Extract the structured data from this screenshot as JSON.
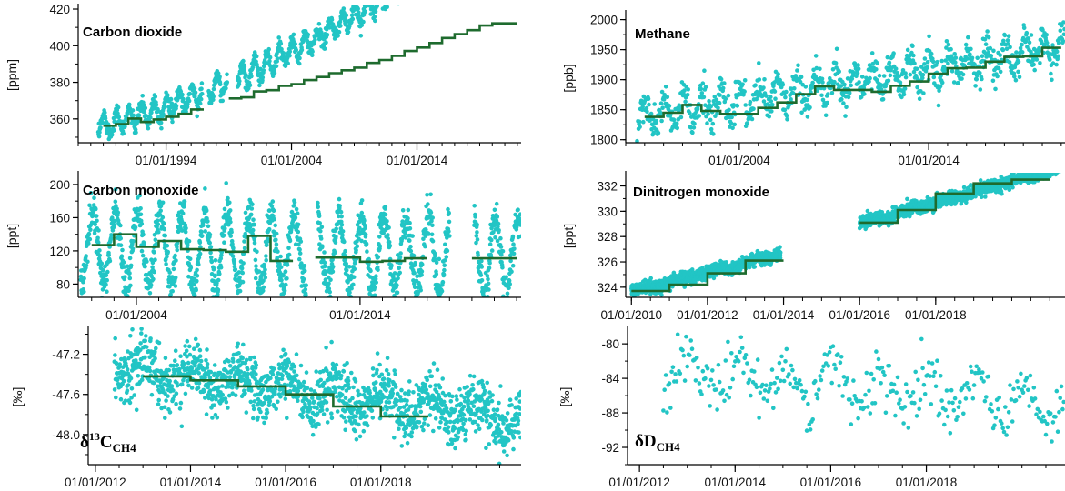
{
  "colors": {
    "points": "#22c5c5",
    "mean_line": "#1e6b2e",
    "axis": "#000000"
  },
  "chart_data": [
    {
      "id": "co2",
      "type": "scatter",
      "title": "Carbon dioxide",
      "ylabel": "[ppm]",
      "xlim": [
        1987.0,
        2022.3
      ],
      "ylim": [
        347,
        421
      ],
      "y_ticks": [
        360,
        380,
        400,
        420
      ],
      "x_ticks": [
        {
          "value": 1994.0,
          "label": "01/01/1994"
        },
        {
          "value": 2004.0,
          "label": "01/01/2004"
        },
        {
          "value": 2014.0,
          "label": "01/01/2014"
        }
      ],
      "points_model": {
        "kind": "seasonal",
        "start": 1988.6,
        "end": 2022.3,
        "spacing": 0.025,
        "base": 356.5,
        "base_year": 1989,
        "trend": 1.78,
        "curvature": 0.006,
        "amplitude": 5.6,
        "noise": 2.2,
        "gaps": [
          [
            1996.9,
            1997.4
          ],
          [
            1998.9,
            1999.7
          ]
        ]
      },
      "annual_means": [
        {
          "start": 1989,
          "end": 1990,
          "value": 356.3
        },
        {
          "start": 1990,
          "end": 1991,
          "value": 357.2
        },
        {
          "start": 1991,
          "end": 1992,
          "value": 360.2
        },
        {
          "start": 1992,
          "end": 1993,
          "value": 358.3
        },
        {
          "start": 1993,
          "end": 1994,
          "value": 359.7
        },
        {
          "start": 1994,
          "end": 1995,
          "value": 361.2
        },
        {
          "start": 1995,
          "end": 1996,
          "value": 362.8
        },
        {
          "start": 1996,
          "end": 1997,
          "value": 365.2
        },
        {
          "start": 1999,
          "end": 2000,
          "value": 371.2
        },
        {
          "start": 2000,
          "end": 2001,
          "value": 371.8
        },
        {
          "start": 2001,
          "end": 2002,
          "value": 375.0
        },
        {
          "start": 2002,
          "end": 2003,
          "value": 375.7
        },
        {
          "start": 2003,
          "end": 2004,
          "value": 378.1
        },
        {
          "start": 2004,
          "end": 2005,
          "value": 379.0
        },
        {
          "start": 2005,
          "end": 2006,
          "value": 381.2
        },
        {
          "start": 2006,
          "end": 2007,
          "value": 382.9
        },
        {
          "start": 2007,
          "end": 2008,
          "value": 385.0
        },
        {
          "start": 2008,
          "end": 2009,
          "value": 386.6
        },
        {
          "start": 2009,
          "end": 2010,
          "value": 388.0
        },
        {
          "start": 2010,
          "end": 2011,
          "value": 390.6
        },
        {
          "start": 2011,
          "end": 2012,
          "value": 392.2
        },
        {
          "start": 2012,
          "end": 2013,
          "value": 394.5
        },
        {
          "start": 2013,
          "end": 2014,
          "value": 397.1
        },
        {
          "start": 2014,
          "end": 2015,
          "value": 399.0
        },
        {
          "start": 2015,
          "end": 2016,
          "value": 401.5
        },
        {
          "start": 2016,
          "end": 2017,
          "value": 404.2
        },
        {
          "start": 2017,
          "end": 2018,
          "value": 406.3
        },
        {
          "start": 2018,
          "end": 2019,
          "value": 408.5
        },
        {
          "start": 2019,
          "end": 2020,
          "value": 411.0
        },
        {
          "start": 2020,
          "end": 2021,
          "value": 412.2
        },
        {
          "start": 2021,
          "end": 2022,
          "value": 412.2
        }
      ]
    },
    {
      "id": "ch4",
      "type": "scatter",
      "title": "Methane",
      "ylabel": "[ppb]",
      "xlim": [
        1998.0,
        2021.2
      ],
      "ylim": [
        1795,
        2010
      ],
      "y_ticks": [
        1800,
        1850,
        1900,
        1950,
        2000
      ],
      "x_ticks": [
        {
          "value": 2004.0,
          "label": "01/01/2004"
        },
        {
          "value": 2014.0,
          "label": "01/01/2014"
        }
      ],
      "points_model": {
        "kind": "seasonal",
        "start": 1998.6,
        "end": 2021.2,
        "spacing": 0.025,
        "base": 1838,
        "base_year": 1999,
        "trend": 5.3,
        "curvature": 0.0,
        "amplitude": 23,
        "noise": 14,
        "gaps": []
      },
      "annual_means": [
        {
          "start": 1999,
          "end": 2000,
          "value": 1838
        },
        {
          "start": 2000,
          "end": 2001,
          "value": 1845
        },
        {
          "start": 2001,
          "end": 2002,
          "value": 1858
        },
        {
          "start": 2002,
          "end": 2003,
          "value": 1848
        },
        {
          "start": 2003,
          "end": 2004,
          "value": 1843
        },
        {
          "start": 2004,
          "end": 2005,
          "value": 1843
        },
        {
          "start": 2005,
          "end": 2006,
          "value": 1853
        },
        {
          "start": 2006,
          "end": 2007,
          "value": 1862
        },
        {
          "start": 2007,
          "end": 2008,
          "value": 1876
        },
        {
          "start": 2008,
          "end": 2009,
          "value": 1889
        },
        {
          "start": 2009,
          "end": 2010,
          "value": 1883
        },
        {
          "start": 2010,
          "end": 2011,
          "value": 1883
        },
        {
          "start": 2011,
          "end": 2012,
          "value": 1880
        },
        {
          "start": 2012,
          "end": 2013,
          "value": 1890
        },
        {
          "start": 2013,
          "end": 2014,
          "value": 1897
        },
        {
          "start": 2014,
          "end": 2015,
          "value": 1910
        },
        {
          "start": 2015,
          "end": 2016,
          "value": 1919
        },
        {
          "start": 2016,
          "end": 2017,
          "value": 1920
        },
        {
          "start": 2017,
          "end": 2018,
          "value": 1930
        },
        {
          "start": 2018,
          "end": 2019,
          "value": 1938
        },
        {
          "start": 2019,
          "end": 2020,
          "value": 1939
        },
        {
          "start": 2020,
          "end": 2021,
          "value": 1953
        }
      ]
    },
    {
      "id": "co",
      "type": "scatter",
      "title": "Carbon monoxide",
      "ylabel": "[ppt]",
      "xlim": [
        2001.4,
        2021.2
      ],
      "ylim": [
        64,
        212
      ],
      "y_ticks": [
        80,
        120,
        160,
        200
      ],
      "x_ticks": [
        {
          "value": 2004.0,
          "label": "01/01/2004"
        },
        {
          "value": 2014.0,
          "label": "01/01/2014"
        }
      ],
      "points_model": {
        "kind": "seasonal",
        "start": 2001.5,
        "end": 2021.2,
        "spacing": 0.012,
        "base": 125,
        "base_year": 2002,
        "trend": -0.6,
        "curvature": 0.0,
        "amplitude": 45,
        "noise": 11,
        "gaps": [
          [
            2011.6,
            2012.1
          ],
          [
            2018.0,
            2019.1
          ]
        ]
      },
      "annual_means": [
        {
          "start": 2002,
          "end": 2003,
          "value": 127
        },
        {
          "start": 2003,
          "end": 2004,
          "value": 140
        },
        {
          "start": 2004,
          "end": 2005,
          "value": 125
        },
        {
          "start": 2005,
          "end": 2006,
          "value": 132
        },
        {
          "start": 2006,
          "end": 2007,
          "value": 122
        },
        {
          "start": 2007,
          "end": 2008,
          "value": 121
        },
        {
          "start": 2008,
          "end": 2009,
          "value": 119
        },
        {
          "start": 2009,
          "end": 2010,
          "value": 138
        },
        {
          "start": 2010,
          "end": 2011,
          "value": 108
        },
        {
          "start": 2012,
          "end": 2013,
          "value": 112
        },
        {
          "start": 2013,
          "end": 2014,
          "value": 112
        },
        {
          "start": 2014,
          "end": 2015,
          "value": 107
        },
        {
          "start": 2015,
          "end": 2016,
          "value": 108
        },
        {
          "start": 2016,
          "end": 2017,
          "value": 111
        },
        {
          "start": 2019,
          "end": 2020,
          "value": 111
        },
        {
          "start": 2020,
          "end": 2021,
          "value": 111
        }
      ]
    },
    {
      "id": "n2o",
      "type": "scatter",
      "title": "Dinitrogen monoxide",
      "ylabel": "[ppt]",
      "xlim": [
        2009.85,
        2021.4
      ],
      "ylim": [
        323.2,
        332.9
      ],
      "y_ticks": [
        324,
        326,
        328,
        330,
        332
      ],
      "x_ticks": [
        {
          "value": 2010.0,
          "label": "01/01/2010"
        },
        {
          "value": 2012.0,
          "label": "01/01/2012"
        },
        {
          "value": 2014.0,
          "label": "01/01/2014"
        },
        {
          "value": 2016.0,
          "label": "01/01/2016"
        },
        {
          "value": 2018.0,
          "label": "01/01/2018"
        }
      ],
      "points_model": {
        "kind": "segments",
        "spacing": 0.004,
        "noise": 0.25,
        "amplitude": 0.1,
        "segments": [
          {
            "start": 2010.0,
            "end": 2013.92,
            "base": 323.6,
            "slope": 0.78
          },
          {
            "start": 2016.0,
            "end": 2021.4,
            "base": 329.0,
            "slope": 0.85
          }
        ]
      },
      "annual_means": [
        {
          "start": 2010,
          "end": 2011,
          "value": 323.7
        },
        {
          "start": 2011,
          "end": 2012,
          "value": 324.2
        },
        {
          "start": 2012,
          "end": 2013,
          "value": 325.1
        },
        {
          "start": 2013,
          "end": 2014,
          "value": 326.1
        },
        {
          "start": 2016,
          "end": 2017,
          "value": 329.1
        },
        {
          "start": 2017,
          "end": 2018,
          "value": 330.1
        },
        {
          "start": 2018,
          "end": 2019,
          "value": 331.4
        },
        {
          "start": 2019,
          "end": 2020,
          "value": 332.2
        },
        {
          "start": 2020,
          "end": 2021,
          "value": 332.5
        }
      ]
    },
    {
      "id": "d13c",
      "type": "scatter",
      "title": "δ",
      "title_sup": "13",
      "title_rest": "C",
      "title_sub": "CH4",
      "ylabel": "[‰]",
      "xlim": [
        2011.85,
        2020.95
      ],
      "ylim": [
        -48.3,
        -46.95
      ],
      "y_ticks": [
        -48.0,
        -47.6,
        -47.2
      ],
      "y_tick_labels": [
        "-48.0",
        "-47.6",
        "-47.2"
      ],
      "x_ticks": [
        {
          "value": 2012.0,
          "label": "01/01/2012"
        },
        {
          "value": 2014.0,
          "label": "01/01/2014"
        },
        {
          "value": 2016.0,
          "label": "01/01/2016"
        },
        {
          "value": 2018.0,
          "label": "01/01/2018"
        }
      ],
      "points_model": {
        "kind": "seasonal",
        "start": 2012.4,
        "end": 2020.95,
        "spacing": 0.006,
        "base": -47.35,
        "base_year": 2013,
        "trend": -0.065,
        "curvature": 0.0,
        "amplitude": 0.13,
        "noise": 0.14,
        "gaps": []
      },
      "annual_means": [
        {
          "start": 2013,
          "end": 2014,
          "value": -47.42
        },
        {
          "start": 2014,
          "end": 2015,
          "value": -47.46
        },
        {
          "start": 2015,
          "end": 2016,
          "value": -47.52
        },
        {
          "start": 2016,
          "end": 2017,
          "value": -47.6
        },
        {
          "start": 2017,
          "end": 2018,
          "value": -47.72
        },
        {
          "start": 2018,
          "end": 2019,
          "value": -47.82
        }
      ]
    },
    {
      "id": "dd",
      "type": "scatter",
      "title": "δD",
      "title_sub": "CH4",
      "ylabel": "[‰]",
      "xlim": [
        2011.75,
        2020.9
      ],
      "ylim": [
        -94,
        -78.3
      ],
      "y_ticks": [
        -92,
        -88,
        -84,
        -80
      ],
      "x_ticks": [
        {
          "value": 2012.0,
          "label": "01/01/2012"
        },
        {
          "value": 2014.0,
          "label": "01/01/2014"
        },
        {
          "value": 2016.0,
          "label": "01/01/2016"
        },
        {
          "value": 2018.0,
          "label": "01/01/2018"
        }
      ],
      "points_model": {
        "kind": "seasonal",
        "start": 2012.5,
        "end": 2020.9,
        "spacing": 0.025,
        "base": -83.2,
        "base_year": 2013,
        "trend": -0.5,
        "curvature": 0.0,
        "amplitude": 2.2,
        "noise": 1.6,
        "gaps": []
      },
      "annual_means": []
    }
  ]
}
